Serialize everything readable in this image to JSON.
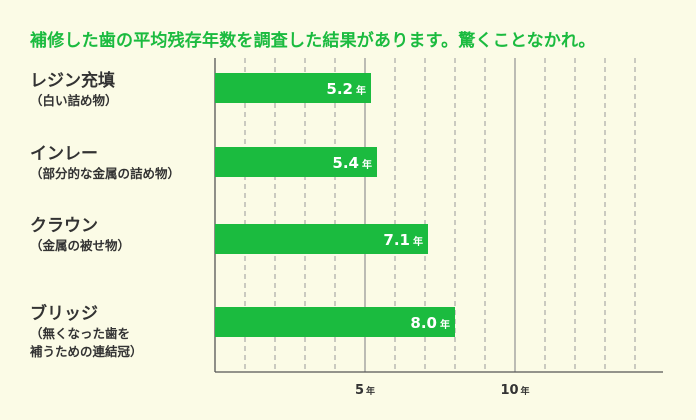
{
  "chart_data": {
    "type": "bar",
    "orientation": "horizontal",
    "title": "補修した歯の平均残存年数を調査した結果があります。驚くことなかれ。",
    "categories": [
      {
        "name": "レジン充填",
        "sub": "（白い詰め物）"
      },
      {
        "name": "インレー",
        "sub": "（部分的な金属の詰め物）"
      },
      {
        "name": "クラウン",
        "sub": "（金属の被せ物）"
      },
      {
        "name": "ブリッジ",
        "sub": "（無くなった歯を\n補うための連結冠）"
      }
    ],
    "values": [
      5.2,
      5.4,
      7.1,
      8.0
    ],
    "value_unit": "年",
    "xlim": [
      0,
      15
    ],
    "ticks": [
      {
        "value": 5,
        "label": "5",
        "unit": "年"
      },
      {
        "value": 10,
        "label": "10",
        "unit": "年"
      }
    ],
    "grid": true,
    "colors": {
      "bar": "#1bbb3f",
      "title": "#1bbb3f",
      "grid": "#999999",
      "background": "#fbfbe6"
    }
  }
}
